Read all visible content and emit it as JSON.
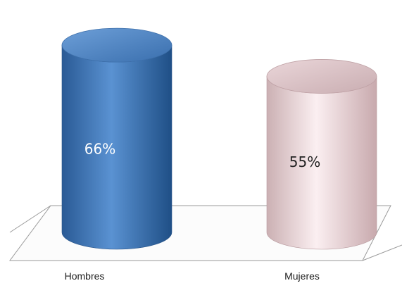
{
  "chart_data": {
    "type": "bar",
    "style": "3d-cylinder",
    "categories": [
      "Hombres",
      "Mujeres"
    ],
    "values": [
      66,
      55
    ],
    "data_labels": [
      "66%",
      "55%"
    ],
    "ylim": [
      0,
      70
    ],
    "grid": false,
    "legend": "none",
    "colors": [
      "#4f86c6",
      "#f4e4e6"
    ],
    "label_colors": [
      "#ffffff",
      "#222222"
    ]
  }
}
